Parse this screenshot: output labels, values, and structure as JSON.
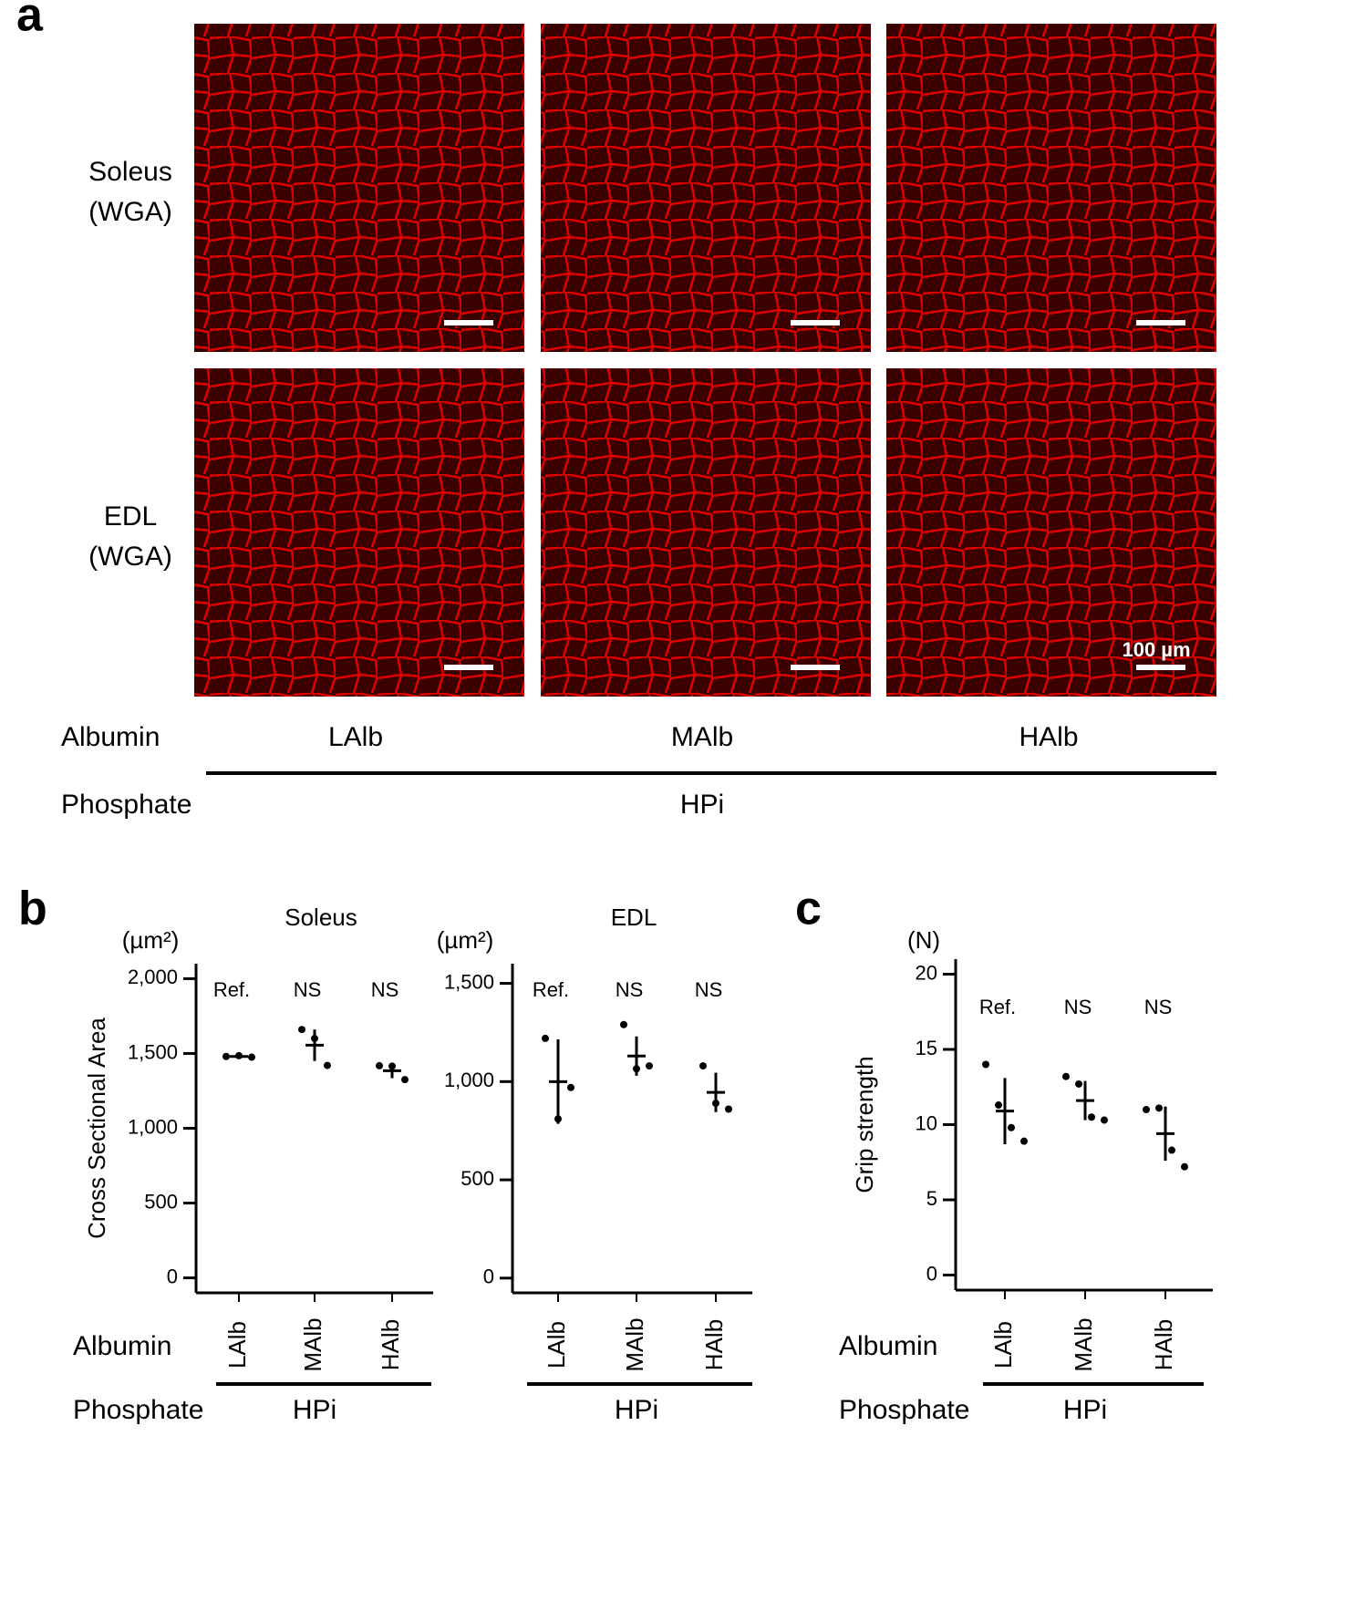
{
  "panel_a": {
    "label": "a",
    "rows": [
      [
        "Soleus",
        "(WGA)"
      ],
      [
        "EDL",
        "(WGA)"
      ]
    ],
    "scale_bar_label": "100 µm",
    "albumin_label": "Albumin",
    "groups": [
      "LAlb",
      "MAlb",
      "HAlb"
    ],
    "phosphate_label": "Phosphate",
    "phosphate_group": "HPi"
  },
  "panel_b_label": "b",
  "panel_c_label": "c",
  "chart_data": [
    {
      "type": "dotplot",
      "title": "Soleus",
      "unit": "(µm²)",
      "ylabel": "Cross Sectional Area",
      "categories": [
        "LAlb",
        "MAlb",
        "HAlb"
      ],
      "annotations": [
        "Ref.",
        "NS",
        "NS"
      ],
      "points": [
        [
          1480,
          1485,
          1475
        ],
        [
          1660,
          1600,
          1420
        ],
        [
          1418,
          1415,
          1325
        ]
      ],
      "means": [
        1480,
        1555,
        1385
      ],
      "sd": [
        10,
        105,
        50
      ],
      "ylim": [
        -100,
        2100
      ],
      "yticks": [
        0,
        500,
        {
          "value": 1000,
          "label": "1,000"
        },
        {
          "value": 1500,
          "label": "1,500"
        },
        {
          "value": 2000,
          "label": "2,000"
        }
      ],
      "albumin_label": "Albumin",
      "phosphate_label": "Phosphate",
      "phosphate_group": "HPi"
    },
    {
      "type": "dotplot",
      "title": "EDL",
      "unit": "(µm²)",
      "categories": [
        "LAlb",
        "MAlb",
        "HAlb"
      ],
      "annotations": [
        "Ref.",
        "NS",
        "NS"
      ],
      "points": [
        [
          1220,
          810,
          970
        ],
        [
          1290,
          1065,
          1080
        ],
        [
          1080,
          890,
          860
        ]
      ],
      "means": [
        1000,
        1130,
        945
      ],
      "sd": [
        215,
        100,
        100
      ],
      "ylim": [
        -75,
        1600
      ],
      "yticks": [
        0,
        500,
        {
          "value": 1000,
          "label": "1,000"
        },
        {
          "value": 1500,
          "label": "1,500"
        }
      ],
      "phosphate_group": "HPi"
    },
    {
      "type": "dotplot",
      "unit": "(N)",
      "ylabel": "Grip strength",
      "categories": [
        "LAlb",
        "MAlb",
        "HAlb"
      ],
      "annotations": [
        "Ref.",
        "NS",
        "NS"
      ],
      "points": [
        [
          14,
          11.3,
          9.8,
          8.9
        ],
        [
          13.2,
          12.7,
          10.5,
          10.3
        ],
        [
          11,
          11.1,
          8.3,
          7.2
        ]
      ],
      "means": [
        10.9,
        11.6,
        9.4
      ],
      "sd": [
        2.2,
        1.3,
        1.8
      ],
      "ylim": [
        -1,
        21
      ],
      "yticks": [
        0,
        5,
        10,
        15,
        20
      ],
      "albumin_label": "Albumin",
      "phosphate_label": "Phosphate",
      "phosphate_group": "HPi"
    }
  ]
}
